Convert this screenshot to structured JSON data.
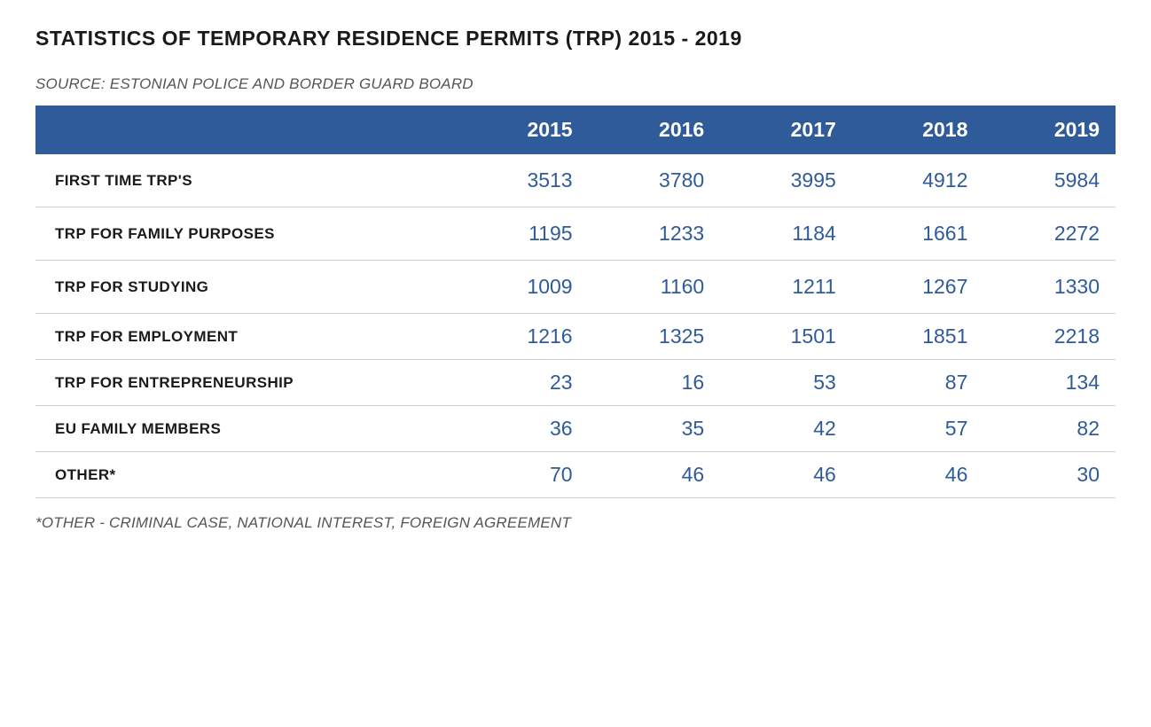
{
  "title": "STATISTICS OF TEMPORARY RESIDENCE PERMITS (TRP) 2015 - 2019",
  "source": "SOURCE: ESTONIAN POLICE AND BORDER GUARD BOARD",
  "footnote": "*OTHER - CRIMINAL CASE, NATIONAL INTEREST, FOREIGN AGREEMENT",
  "colors": {
    "header_bg": "#2f5b9b",
    "header_text": "#ffffff",
    "value_text": "#2f5b9b",
    "label_text": "#1a1a1a",
    "meta_text": "#555555",
    "border": "#d0d0d0",
    "background": "#ffffff"
  },
  "typography": {
    "title_fontsize": 23,
    "title_weight": 800,
    "source_fontsize": 17,
    "header_fontsize": 23,
    "label_fontsize": 17,
    "value_fontsize": 23,
    "footnote_fontsize": 17
  },
  "table": {
    "type": "table",
    "columns": [
      "",
      "2015",
      "2016",
      "2017",
      "2018",
      "2019"
    ],
    "column_widths": [
      "39%",
      "12.2%",
      "12.2%",
      "12.2%",
      "12.2%",
      "12.2%"
    ],
    "label_align": "left",
    "value_align": "right",
    "rows": [
      {
        "label": "FIRST TIME TRP'S",
        "values": [
          "3513",
          "3780",
          "3995",
          "4912",
          "5984"
        ],
        "tight": false
      },
      {
        "label": "TRP FOR FAMILY PURPOSES",
        "values": [
          "1195",
          "1233",
          "1184",
          "1661",
          "2272"
        ],
        "tight": false
      },
      {
        "label": "TRP FOR STUDYING",
        "values": [
          "1009",
          "1160",
          "1211",
          "1267",
          "1330"
        ],
        "tight": false
      },
      {
        "label": "TRP FOR EMPLOYMENT",
        "values": [
          "1216",
          "1325",
          "1501",
          "1851",
          "2218"
        ],
        "tight": true
      },
      {
        "label": "TRP FOR ENTREPRENEURSHIP",
        "values": [
          "23",
          "16",
          "53",
          "87",
          "134"
        ],
        "tight": true
      },
      {
        "label": "EU FAMILY MEMBERS",
        "values": [
          "36",
          "35",
          "42",
          "57",
          "82"
        ],
        "tight": true
      },
      {
        "label": "OTHER*",
        "values": [
          "70",
          "46",
          "46",
          "46",
          "30"
        ],
        "tight": true
      }
    ]
  }
}
